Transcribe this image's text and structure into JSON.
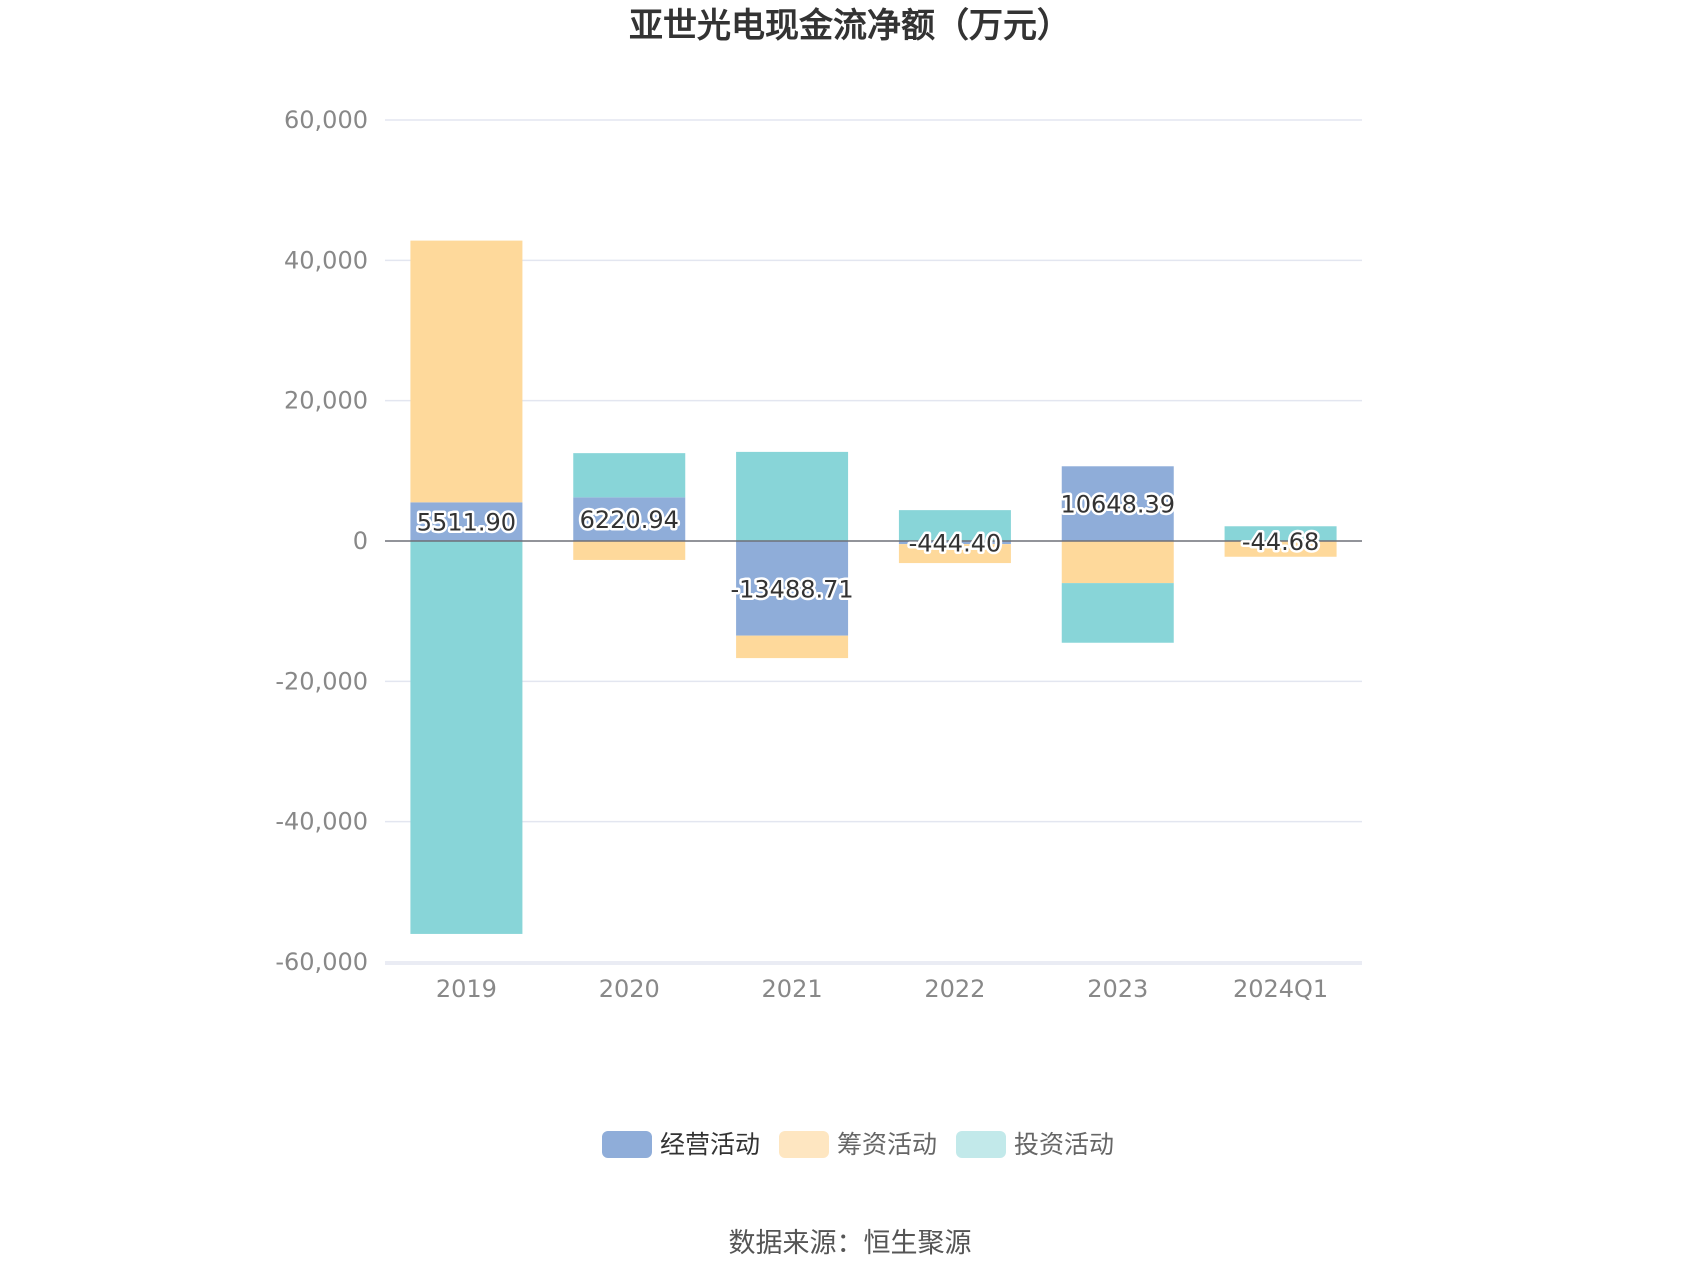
{
  "chart_data": {
    "type": "bar",
    "stacked": true,
    "title": "亚世光电现金流净额（万元）",
    "categories": [
      "2019",
      "2020",
      "2021",
      "2022",
      "2023",
      "2024Q1"
    ],
    "ylim": [
      -60000,
      60000
    ],
    "yticks": [
      "60,000",
      "40,000",
      "20,000",
      "0",
      "-20,000",
      "-40,000",
      "-60,000"
    ],
    "ytick_values": [
      60000,
      40000,
      20000,
      0,
      -20000,
      -40000,
      -60000
    ],
    "grid": true,
    "legend_position": "bottom",
    "series": [
      {
        "name": "经营活动",
        "color": "#8fadd9",
        "values": [
          5511.9,
          6220.94,
          -13488.71,
          -444.4,
          10648.39,
          -44.68
        ],
        "labels": [
          "5511.90",
          "6220.94",
          "-13488.71",
          "-444.40",
          "10648.39",
          "-44.68"
        ]
      },
      {
        "name": "筹资活动",
        "color": "#fed99b",
        "values": [
          37300,
          -2700,
          -3200,
          -2700,
          -6000,
          -2200
        ]
      },
      {
        "name": "投资活动",
        "color": "#88d5d8",
        "values": [
          -56000,
          6300,
          12700,
          4400,
          -8500,
          2100
        ]
      }
    ],
    "legend_colors": [
      "#8fadd9",
      "#fee6c1",
      "#c2e9ea"
    ]
  },
  "source": "数据来源：恒生聚源"
}
